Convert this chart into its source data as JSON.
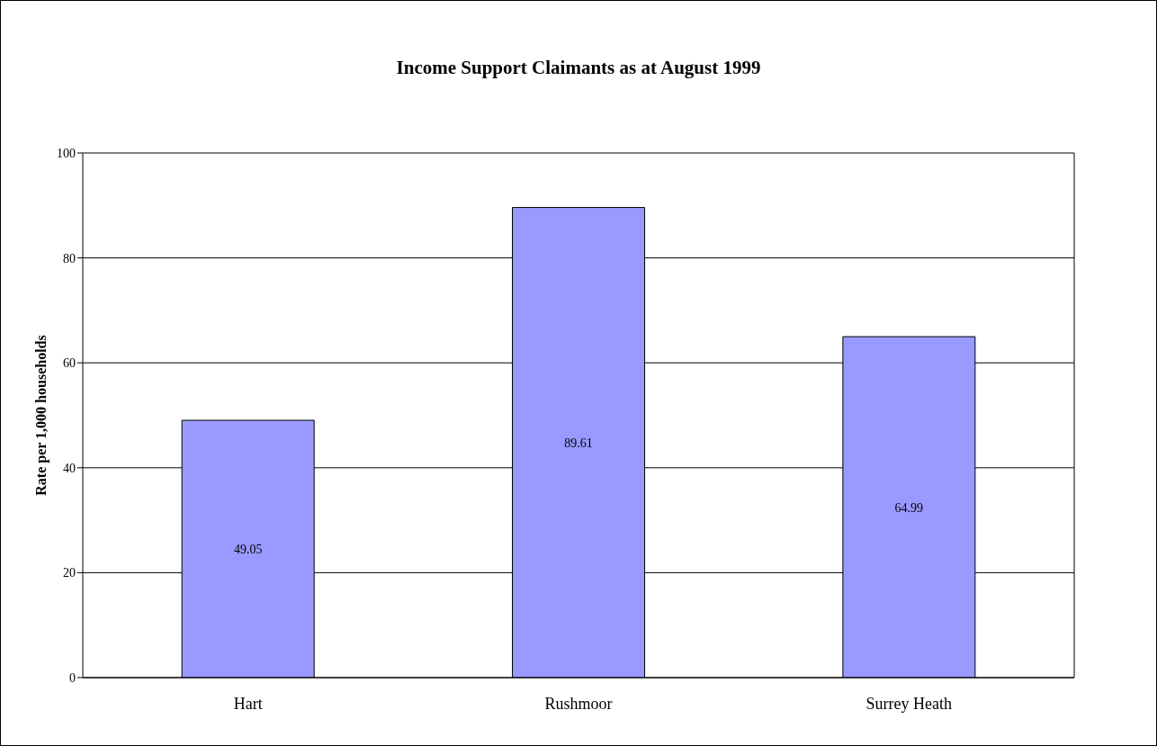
{
  "chart_data": {
    "type": "bar",
    "title": "Income Support Claimants as at August 1999",
    "ylabel": "Rate per 1,000 households",
    "categories": [
      "Hart",
      "Rushmoor",
      "Surrey Heath"
    ],
    "values": [
      49.05,
      89.61,
      64.99
    ],
    "color": "#9999ff",
    "ylim": [
      0,
      100
    ],
    "yticks": [
      0,
      20,
      40,
      60,
      80,
      100
    ],
    "grid": "y",
    "data_labels": true
  }
}
